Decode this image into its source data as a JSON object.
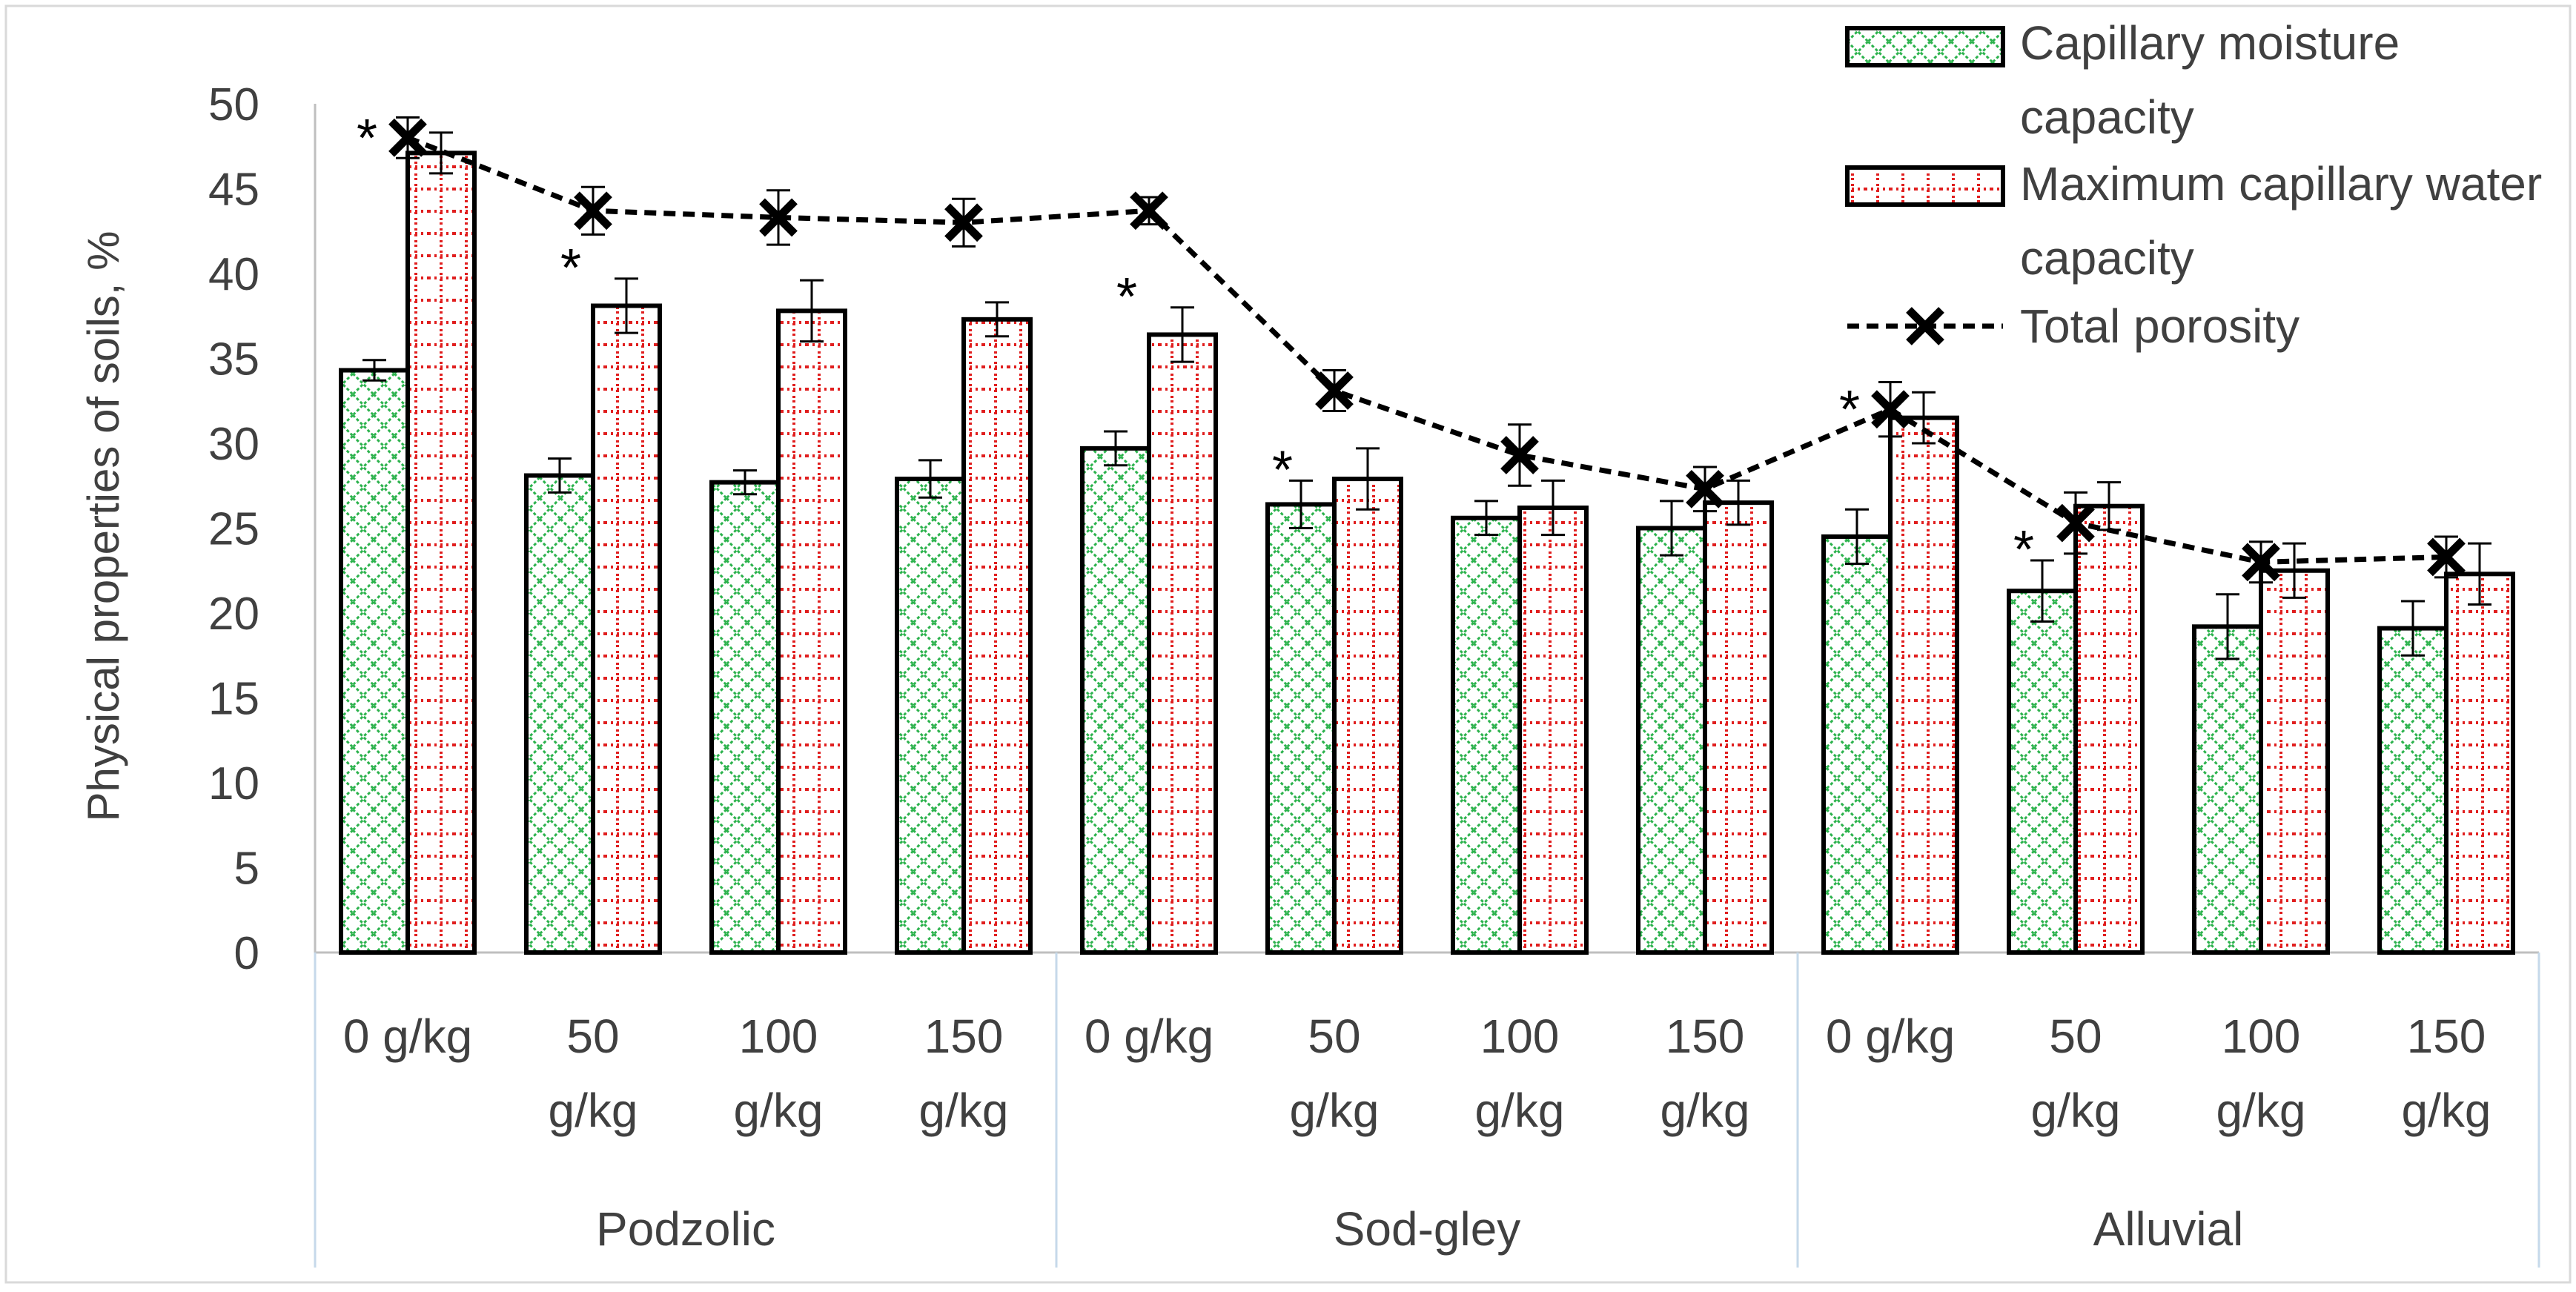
{
  "chart_data": {
    "type": "bar",
    "title": "",
    "ylabel": "Physical properties of soils, %",
    "xlabel": "",
    "ylim": [
      0,
      50
    ],
    "yticks": [
      0,
      5,
      10,
      15,
      20,
      25,
      30,
      35,
      40,
      45,
      50
    ],
    "groups": [
      {
        "label": "Podzolic",
        "categories": [
          "0 g/kg",
          "50 g/kg",
          "100 g/kg",
          "150 g/kg"
        ]
      },
      {
        "label": "Sod-gley",
        "categories": [
          "0 g/kg",
          "50 g/kg",
          "100 g/kg",
          "150 g/kg"
        ]
      },
      {
        "label": "Alluvial",
        "categories": [
          "0 g/kg",
          "50 g/kg",
          "100 g/kg",
          "150 g/kg"
        ]
      }
    ],
    "series": [
      {
        "name": "Capillary moisture capacity",
        "kind": "bar",
        "pattern": "green-crosshatch",
        "values": [
          34.3,
          28.1,
          27.7,
          27.9,
          29.7,
          26.4,
          25.6,
          25.0,
          24.5,
          21.3,
          19.2,
          19.1
        ],
        "errors": [
          0.6,
          1.0,
          0.7,
          1.1,
          1.0,
          1.4,
          1.0,
          1.6,
          1.6,
          1.8,
          1.9,
          1.6
        ],
        "significance": [
          false,
          false,
          false,
          false,
          false,
          true,
          false,
          false,
          false,
          true,
          false,
          false
        ]
      },
      {
        "name": "Maximum capillary water capacity",
        "kind": "bar",
        "pattern": "red-dotted-grid",
        "values": [
          47.1,
          38.1,
          37.8,
          37.3,
          36.4,
          27.9,
          26.2,
          26.5,
          31.5,
          26.3,
          22.5,
          22.3
        ],
        "errors": [
          1.2,
          1.6,
          1.8,
          1.0,
          1.6,
          1.8,
          1.6,
          1.3,
          1.5,
          1.4,
          1.6,
          1.8
        ],
        "significance": [
          false,
          true,
          false,
          false,
          true,
          false,
          false,
          false,
          false,
          false,
          false,
          false
        ]
      },
      {
        "name": "Total porosity",
        "kind": "line",
        "style": "dashed",
        "marker": "x",
        "values": [
          48.0,
          43.7,
          43.3,
          43.0,
          43.7,
          33.1,
          29.3,
          27.3,
          32.0,
          25.3,
          23.0,
          23.3
        ],
        "errors": [
          1.2,
          1.4,
          1.6,
          1.4,
          0.8,
          1.2,
          1.8,
          1.3,
          1.6,
          1.8,
          1.2,
          1.2
        ],
        "significance": [
          true,
          false,
          false,
          false,
          false,
          false,
          false,
          false,
          true,
          false,
          false,
          false
        ]
      }
    ],
    "significance_marker": "*",
    "legend": {
      "position": "top-right",
      "entries": [
        "Capillary moisture capacity",
        "Maximum capillary water capacity",
        "Total porosity"
      ]
    },
    "grid": false
  },
  "colors": {
    "green_pattern": "#2bb24c",
    "red_pattern": "#e01e1e",
    "axis": "#bfbfbf",
    "text": "#404040",
    "group_divider": "#c6d9ea"
  }
}
